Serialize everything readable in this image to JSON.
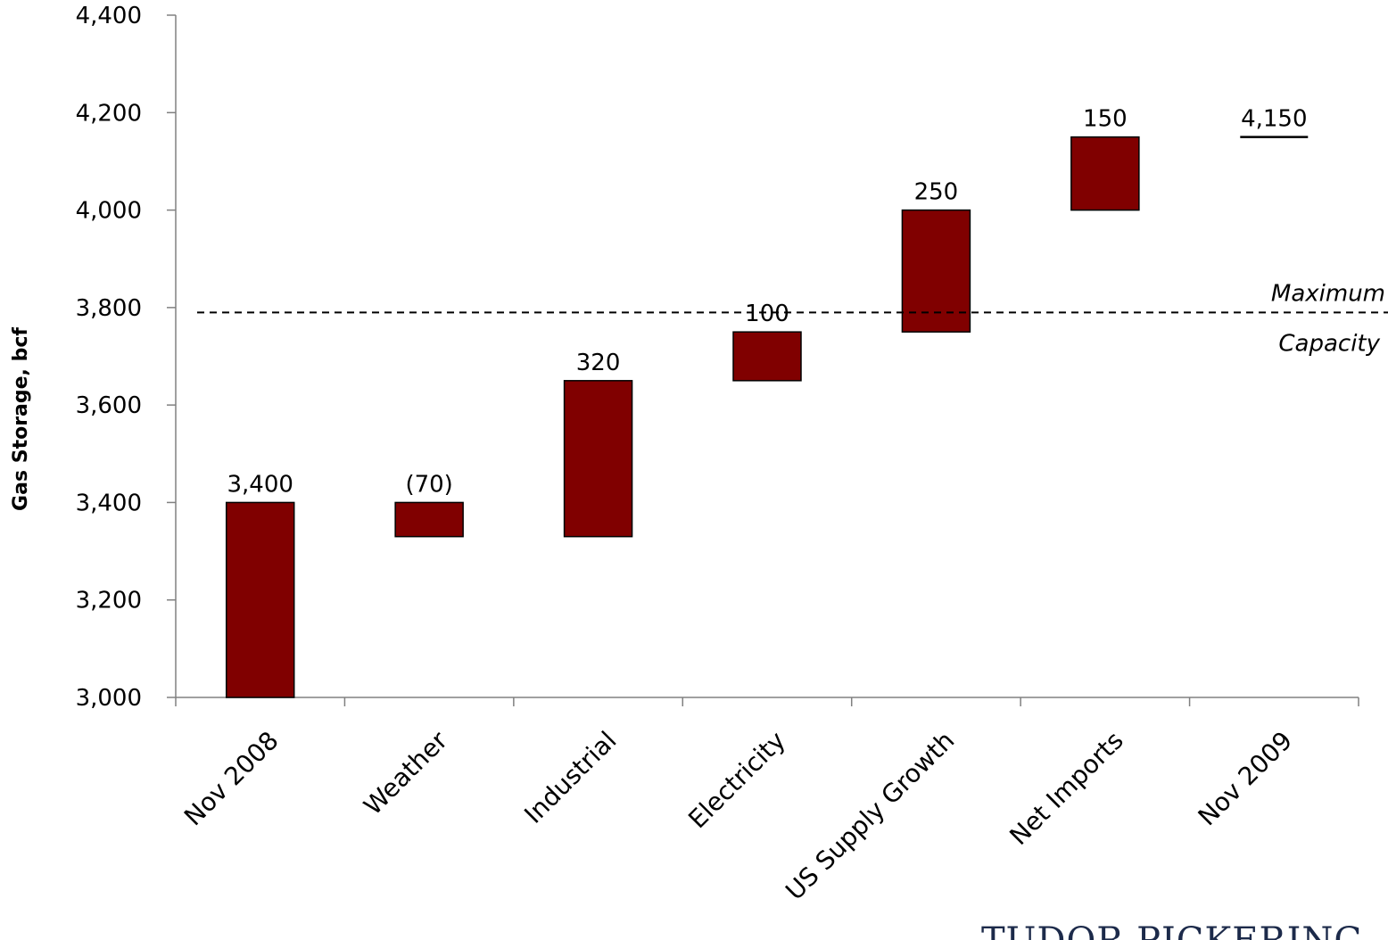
{
  "chart_data": {
    "type": "bar",
    "subtype": "waterfall",
    "categories": [
      "Nov 2008",
      "Weather",
      "Industrial",
      "Electricity",
      "US Supply Growth",
      "Net Imports",
      "Nov 2009"
    ],
    "bars": [
      {
        "category": "Nov 2008",
        "start": 3000,
        "end": 3400,
        "label": "3,400"
      },
      {
        "category": "Weather",
        "start": 3400,
        "end": 3330,
        "label": "(70)"
      },
      {
        "category": "Industrial",
        "start": 3330,
        "end": 3650,
        "label": "320"
      },
      {
        "category": "Electricity",
        "start": 3650,
        "end": 3750,
        "label": "100"
      },
      {
        "category": "US Supply Growth",
        "start": 3750,
        "end": 4000,
        "label": "250"
      },
      {
        "category": "Net Imports",
        "start": 4000,
        "end": 4150,
        "label": "150"
      },
      {
        "category": "Nov 2009",
        "start": 4150,
        "end": 4150,
        "label": "4,150"
      }
    ],
    "ylabel": "Gas Storage, bcf",
    "ylim": [
      3000,
      4400
    ],
    "yticks": [
      3000,
      3200,
      3400,
      3600,
      3800,
      4000,
      4200,
      4400
    ],
    "ytick_labels": [
      "3,000",
      "3,200",
      "3,400",
      "3,600",
      "3,800",
      "4,000",
      "4,200",
      "4,400"
    ],
    "reference_line": {
      "value": 3790,
      "label_top": "Maximum",
      "label_bottom": "Capacity",
      "style": "dashed"
    },
    "bar_color": "#800000",
    "grid": false,
    "legend": "none"
  },
  "logo": {
    "text": "TUDOR PICKERING"
  }
}
